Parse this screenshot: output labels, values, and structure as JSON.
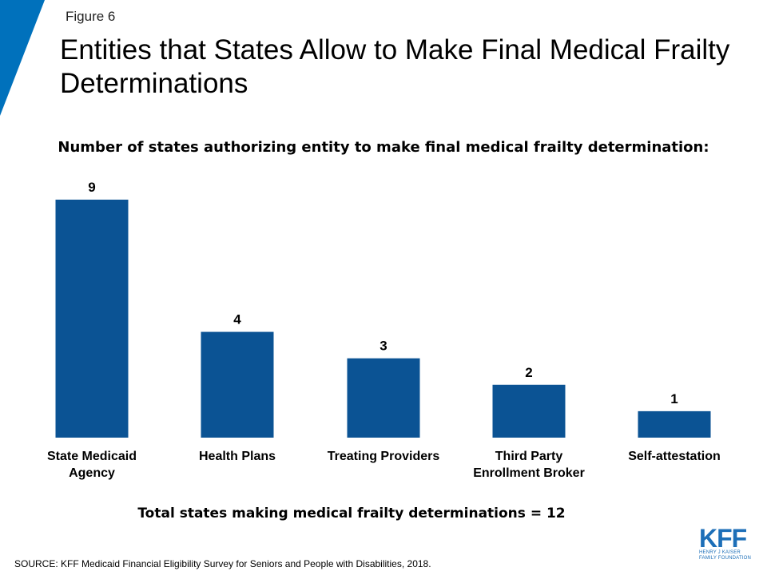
{
  "figure_label": "Figure 6",
  "title": "Entities that States Allow to Make Final Medical Frailty Determinations",
  "subtitle": "Number of states authorizing entity to make final medical frailty determination:",
  "total_note": "Total states making medical frailty determinations = 12",
  "source": "SOURCE: KFF Medicaid Financial Eligibility Survey for Seniors and People with Disabilities, 2018.",
  "logo": {
    "mark": "KFF",
    "line1": "HENRY J KAISER",
    "line2": "FAMILY FOUNDATION"
  },
  "colors": {
    "bar": "#0b5394",
    "accent": "#0071bc",
    "logo": "#1d6fb8"
  },
  "chart_data": {
    "type": "bar",
    "categories": [
      "State Medicaid Agency",
      "Health Plans",
      "Treating Providers",
      "Third Party Enrollment Broker",
      "Self-attestation"
    ],
    "category_lines": [
      [
        "State Medicaid",
        "Agency"
      ],
      [
        "Health Plans"
      ],
      [
        "Treating Providers"
      ],
      [
        "Third Party",
        "Enrollment Broker"
      ],
      [
        "Self-attestation"
      ]
    ],
    "values": [
      9,
      4,
      3,
      2,
      1
    ],
    "data_labels": [
      "9",
      "4",
      "3",
      "2",
      "1"
    ],
    "ylim": [
      0,
      9
    ],
    "grid": false,
    "legend": "none"
  }
}
